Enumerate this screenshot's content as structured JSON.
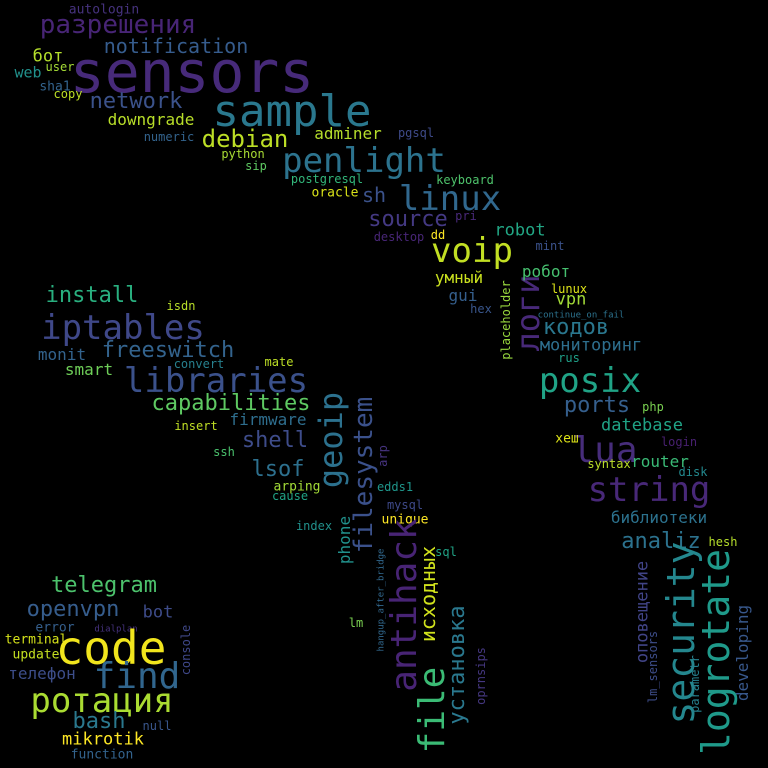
{
  "words": [
    {
      "text": "sensors",
      "color": "#472a7a"
    },
    {
      "text": "sample",
      "color": "#2a788e"
    },
    {
      "text": "разрешения",
      "color": "#482576"
    },
    {
      "text": "notification",
      "color": "#365c8d"
    },
    {
      "text": "autologin",
      "color": "#46327e"
    },
    {
      "text": "бот",
      "color": "#b4de2c"
    },
    {
      "text": "user",
      "color": "#a5db36"
    },
    {
      "text": "web",
      "color": "#21918c"
    },
    {
      "text": "sha1",
      "color": "#33638d"
    },
    {
      "text": "copy",
      "color": "#bddf26"
    },
    {
      "text": "network",
      "color": "#3b528b"
    },
    {
      "text": "downgrade",
      "color": "#b8de29"
    },
    {
      "text": "numeric",
      "color": "#33638d"
    },
    {
      "text": "debian",
      "color": "#bddf26"
    },
    {
      "text": "python",
      "color": "#a8db34"
    },
    {
      "text": "sip",
      "color": "#5ec962"
    },
    {
      "text": "adminer",
      "color": "#b5de2b"
    },
    {
      "text": "pgsql",
      "color": "#3e4a89"
    },
    {
      "text": "penlight",
      "color": "#2c738e"
    },
    {
      "text": "postgresql",
      "color": "#32b67a"
    },
    {
      "text": "oracle",
      "color": "#d8e219"
    },
    {
      "text": "keyboard",
      "color": "#4ec36b"
    },
    {
      "text": "linux",
      "color": "#31688e"
    },
    {
      "text": "sh",
      "color": "#3b528b"
    },
    {
      "text": "source",
      "color": "#443983"
    },
    {
      "text": "pri",
      "color": "#482979"
    },
    {
      "text": "desktop",
      "color": "#482677"
    },
    {
      "text": "dd",
      "color": "#fde725"
    },
    {
      "text": "voip",
      "color": "#c2df23"
    },
    {
      "text": "robot",
      "color": "#22a785"
    },
    {
      "text": "mint",
      "color": "#3b528b"
    },
    {
      "text": "логи",
      "color": "#482979"
    },
    {
      "text": "робот",
      "color": "#46c06f"
    },
    {
      "text": "умный",
      "color": "#cae11f"
    },
    {
      "text": "placeholder",
      "color": "#98d83e"
    },
    {
      "text": "lunux",
      "color": "#dde318"
    },
    {
      "text": "gui",
      "color": "#355f8d"
    },
    {
      "text": "vpn",
      "color": "#a2da37"
    },
    {
      "text": "install",
      "color": "#29af7f"
    },
    {
      "text": "isdn",
      "color": "#b8de29"
    },
    {
      "text": "iptables",
      "color": "#3f4889"
    },
    {
      "text": "hex",
      "color": "#39568c"
    },
    {
      "text": "continue_on_fail",
      "color": "#2c728e"
    },
    {
      "text": "кодов",
      "color": "#2a778e"
    },
    {
      "text": "freeswitch",
      "color": "#33638d"
    },
    {
      "text": "monit",
      "color": "#33638d"
    },
    {
      "text": "мониторинг",
      "color": "#2e6f8e"
    },
    {
      "text": "smart",
      "color": "#6ece58"
    },
    {
      "text": "mate",
      "color": "#bddf26"
    },
    {
      "text": "convert",
      "color": "#27808e"
    },
    {
      "text": "rus",
      "color": "#1fa088"
    },
    {
      "text": "libraries",
      "color": "#3b518b"
    },
    {
      "text": "posix",
      "color": "#20a386"
    },
    {
      "text": "capabilities",
      "color": "#5ec962"
    },
    {
      "text": "ports",
      "color": "#355f8d"
    },
    {
      "text": "php",
      "color": "#7ad151"
    },
    {
      "text": "firmware",
      "color": "#2e6e8e"
    },
    {
      "text": "insert",
      "color": "#c0df25"
    },
    {
      "text": "geoip",
      "color": "#2c718e"
    },
    {
      "text": "datebase",
      "color": "#20a386"
    },
    {
      "text": "login",
      "color": "#482071"
    },
    {
      "text": "shell",
      "color": "#3e4c8a"
    },
    {
      "text": "lua",
      "color": "#472d7b"
    },
    {
      "text": "хеш",
      "color": "#dde318"
    },
    {
      "text": "ssh",
      "color": "#4ac16d"
    },
    {
      "text": "filesystem",
      "color": "#3b518b"
    },
    {
      "text": "arp",
      "color": "#46337f"
    },
    {
      "text": "syntax",
      "color": "#bade28"
    },
    {
      "text": "router",
      "color": "#3aba76"
    },
    {
      "text": "disk",
      "color": "#23898e"
    },
    {
      "text": "lsof",
      "color": "#2d708e"
    },
    {
      "text": "arping",
      "color": "#a2da37"
    },
    {
      "text": "cause",
      "color": "#20a386"
    },
    {
      "text": "edds1",
      "color": "#1f968b"
    },
    {
      "text": "string",
      "color": "#482878"
    },
    {
      "text": "mysql",
      "color": "#3e4989"
    },
    {
      "text": "index",
      "color": "#21918c"
    },
    {
      "text": "unique",
      "color": "#fde725"
    },
    {
      "text": "библиотеки",
      "color": "#2c728e"
    },
    {
      "text": "antihack",
      "color": "#482475"
    },
    {
      "text": "analiz",
      "color": "#2c728e"
    },
    {
      "text": "hesh",
      "color": "#b5de2b"
    },
    {
      "text": "sql",
      "color": "#20a386"
    },
    {
      "text": "исходных",
      "color": "#d0e11c"
    },
    {
      "text": "phone",
      "color": "#21918c"
    },
    {
      "text": "hangup_after_bridge",
      "color": "#31688e"
    },
    {
      "text": "file",
      "color": "#3bbb75"
    },
    {
      "text": "установка",
      "color": "#2a788e"
    },
    {
      "text": "security",
      "color": "#24878e"
    },
    {
      "text": "оповещение",
      "color": "#414487"
    },
    {
      "text": "logrotate",
      "color": "#1f9a8a"
    },
    {
      "text": "developing",
      "color": "#38588c"
    },
    {
      "text": "telegram",
      "color": "#4cc26c"
    },
    {
      "text": "openvpn",
      "color": "#365d8d"
    },
    {
      "text": "bot",
      "color": "#3e4c8a"
    },
    {
      "text": "error",
      "color": "#355f8d"
    },
    {
      "text": "dialplan",
      "color": "#46327e"
    },
    {
      "text": "terminal",
      "color": "#d5e21a"
    },
    {
      "text": "update",
      "color": "#c5e021"
    },
    {
      "text": "code",
      "color": "#f1e51d"
    },
    {
      "text": "console",
      "color": "#3f4889"
    },
    {
      "text": "телефон",
      "color": "#3d4e8a"
    },
    {
      "text": "find",
      "color": "#31668e"
    },
    {
      "text": "ротация",
      "color": "#aadc32"
    },
    {
      "text": "null",
      "color": "#39568c"
    },
    {
      "text": "bash",
      "color": "#2a788e"
    },
    {
      "text": "mikrotik",
      "color": "#fde725"
    },
    {
      "text": "function",
      "color": "#33638d"
    },
    {
      "text": "lm",
      "color": "#7ad151"
    },
    {
      "text": "oprnsips",
      "color": "#453781"
    },
    {
      "text": "lm_sensors",
      "color": "#3d4d8a"
    },
    {
      "text": "parametr",
      "color": "#26818e"
    }
  ]
}
